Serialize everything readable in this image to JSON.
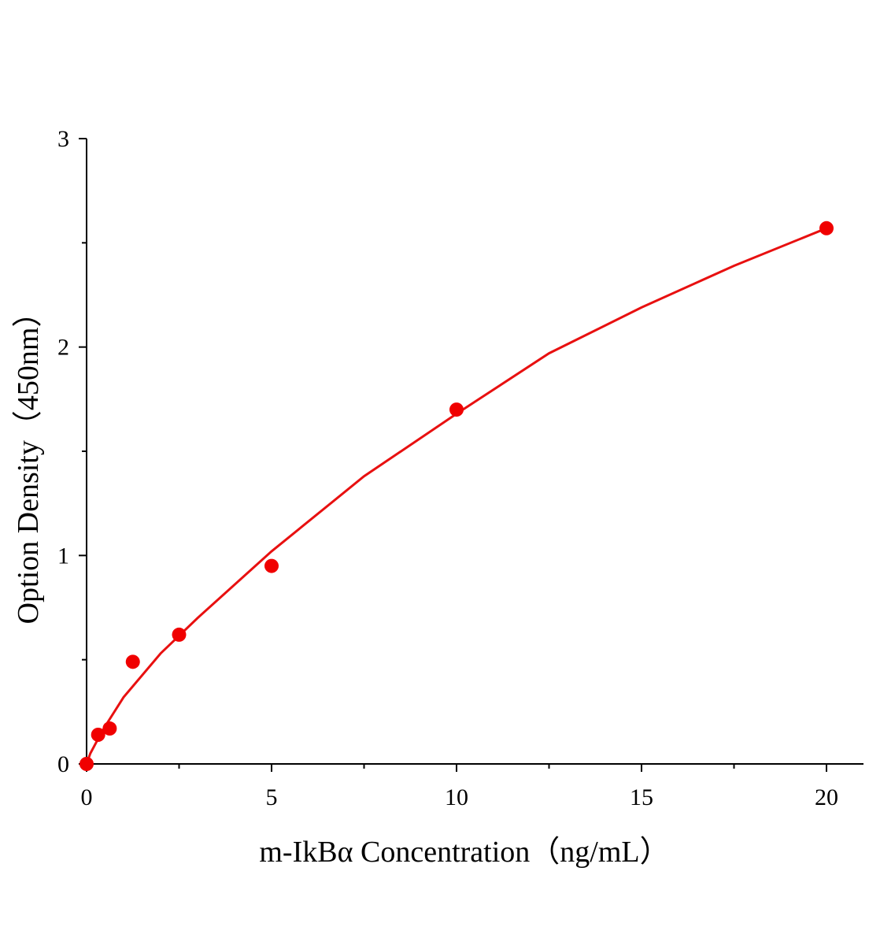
{
  "chart_data": {
    "type": "scatter",
    "x_label": "m-IkBα Concentration（ng/mL）",
    "y_label": "Option Density（450nm）",
    "xlim": [
      0,
      21
    ],
    "xticks": [
      0,
      5,
      10,
      15,
      20
    ],
    "x_minor_ticks": [
      2.5,
      7.5,
      12.5,
      17.5
    ],
    "ylim": [
      0,
      3
    ],
    "yticks": [
      0,
      1,
      2,
      3
    ],
    "y_minor_ticks": [
      0.5,
      1.5,
      2.5
    ],
    "series": [
      {
        "type": "scatter",
        "color": "#f00000",
        "x": [
          0,
          0.3125,
          0.625,
          1.25,
          2.5,
          5,
          10,
          20
        ],
        "values": [
          0,
          0.14,
          0.17,
          0.49,
          0.62,
          0.95,
          1.7,
          2.57
        ]
      },
      {
        "type": "line",
        "color": "#e81010",
        "x": [
          0,
          0.1,
          0.25,
          0.5,
          1,
          2,
          3,
          5,
          7.5,
          10,
          12.5,
          15,
          17.5,
          20
        ],
        "values": [
          0,
          0.05,
          0.1,
          0.18,
          0.32,
          0.53,
          0.7,
          1.02,
          1.38,
          1.68,
          1.97,
          2.19,
          2.39,
          2.57
        ]
      }
    ]
  }
}
